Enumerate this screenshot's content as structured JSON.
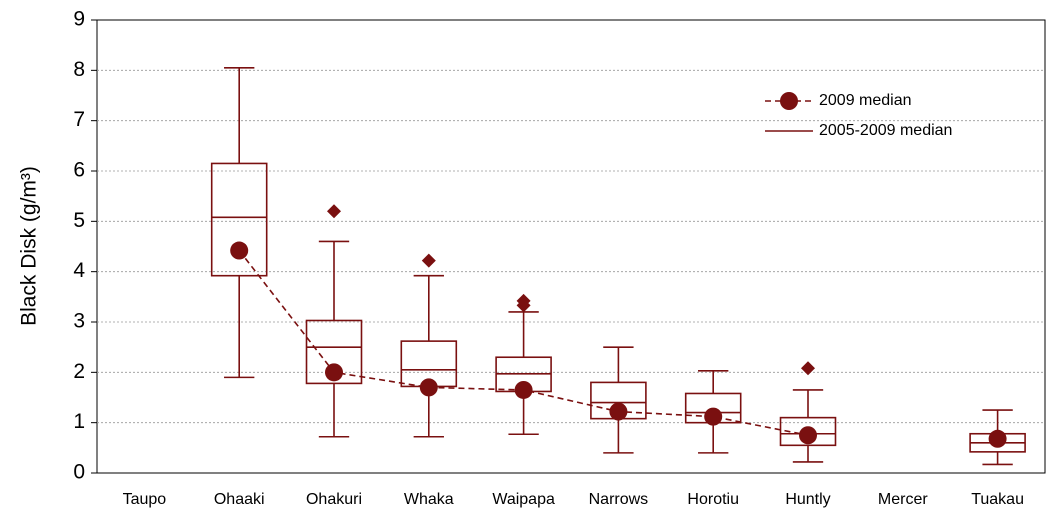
{
  "chart_data": {
    "type": "box",
    "y_label": "Black Disk (g/m³)",
    "categories": [
      "Taupo",
      "Ohaaki",
      "Ohakuri",
      "Whaka",
      "Waipapa",
      "Narrows",
      "Horotiu",
      "Huntly",
      "Mercer",
      "Tuakau"
    ],
    "series": [
      {
        "name": "2009 median",
        "color": "#7a1010",
        "values": [
          null,
          4.42,
          2.0,
          1.7,
          1.65,
          1.22,
          1.12,
          0.75,
          null,
          0.68
        ]
      },
      {
        "name": "2005-2009 median",
        "color": "#7a1010",
        "values": [
          null,
          5.08,
          2.5,
          2.05,
          1.97,
          1.4,
          1.2,
          0.78,
          null,
          0.6
        ]
      }
    ],
    "whisker_low": [
      null,
      1.9,
      0.72,
      0.72,
      0.77,
      0.4,
      0.4,
      0.22,
      null,
      0.17
    ],
    "q1": [
      null,
      3.92,
      1.78,
      1.72,
      1.62,
      1.08,
      1.0,
      0.55,
      null,
      0.42
    ],
    "q3": [
      null,
      6.15,
      3.03,
      2.62,
      2.3,
      1.8,
      1.58,
      1.1,
      null,
      0.78
    ],
    "whisker_high": [
      null,
      8.05,
      4.6,
      3.92,
      3.2,
      2.5,
      2.03,
      1.65,
      null,
      1.25
    ],
    "outliers": [
      [],
      [],
      [
        5.2
      ],
      [
        4.22
      ],
      [
        3.33,
        3.42
      ],
      [],
      [],
      [
        2.08
      ],
      [],
      []
    ],
    "ylim": [
      0,
      9
    ],
    "yticks": [
      0,
      1,
      2,
      3,
      4,
      5,
      6,
      7,
      8,
      9
    ],
    "grid": true,
    "legend": "upper right"
  }
}
